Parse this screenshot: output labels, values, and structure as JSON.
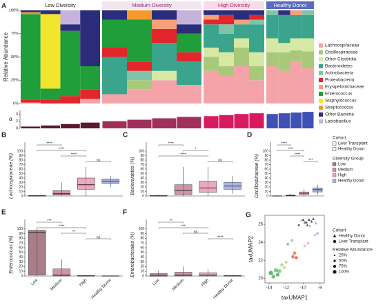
{
  "chart_data": [
    {
      "type": "stacked_bar",
      "panel": "A",
      "ylabel": "Relative Abundance",
      "ylim": [
        0,
        100
      ],
      "yticks": [
        {
          "value": 0,
          "label": "0%"
        },
        {
          "value": 25,
          "label": "25%"
        },
        {
          "value": 50,
          "label": "50%"
        },
        {
          "value": 75,
          "label": "75%"
        },
        {
          "value": 100,
          "label": "100%"
        }
      ],
      "series": [
        {
          "name": "Lachnospiraceae",
          "color": "#f4a3a8"
        },
        {
          "name": "Oscillospiraceae",
          "color": "#a9c97a"
        },
        {
          "name": "Other Clostridia",
          "color": "#d6e8a4"
        },
        {
          "name": "Bacteroidetes",
          "color": "#3aa58c"
        },
        {
          "name": "Actinobacteria",
          "color": "#7fc4a8"
        },
        {
          "name": "Proteobacteria",
          "color": "#e3262b"
        },
        {
          "name": "Erysipelotrichaceae",
          "color": "#f7a07a"
        },
        {
          "name": "Enterococcus",
          "color": "#1f9e3a"
        },
        {
          "name": "Staphylococcus",
          "color": "#f2e52e"
        },
        {
          "name": "Streptococcus",
          "color": "#f39a2a"
        },
        {
          "name": "Other Bacteria",
          "color": "#2b2d7a"
        },
        {
          "name": "Lactobacillus",
          "color": "#c6b3dd"
        }
      ],
      "alpha_label": "α",
      "alpha_ylim": [
        0,
        5
      ],
      "alpha_yticks": [
        0,
        2,
        4
      ],
      "facets": [
        {
          "title": "Low Diversity",
          "title_color": "#222222",
          "header_color": "#ffffff",
          "color": "#5b1a2c",
          "values": [
            [
              1,
              0,
              0,
              5
            ],
            [
              0,
              0,
              0,
              0
            ],
            [
              0,
              0,
              0,
              0
            ],
            [
              0,
              0,
              0,
              0
            ],
            [
              0,
              0,
              0,
              0
            ],
            [
              3,
              4,
              8,
              10
            ],
            [
              0,
              0,
              0,
              0
            ],
            [
              92,
              12,
              70,
              25
            ],
            [
              0,
              80,
              0,
              0
            ],
            [
              2,
              0,
              0,
              0
            ],
            [
              2,
              4,
              7,
              60
            ],
            [
              0,
              0,
              15,
              0
            ]
          ],
          "alpha": [
            0.5,
            0.8,
            1.2,
            1.6
          ]
        },
        {
          "title": "Medium Diversity",
          "title_color": "#8a2c7a",
          "header_color": "#f3e6f0",
          "color": "#a0305a",
          "values": [
            [
              10,
              15,
              25,
              20
            ],
            [
              0,
              10,
              0,
              0
            ],
            [
              0,
              0,
              10,
              0
            ],
            [
              40,
              0,
              30,
              25
            ],
            [
              0,
              10,
              0,
              0
            ],
            [
              10,
              10,
              15,
              10
            ],
            [
              0,
              0,
              10,
              0
            ],
            [
              30,
              45,
              0,
              20
            ],
            [
              0,
              0,
              0,
              0
            ],
            [
              0,
              10,
              0,
              0
            ],
            [
              10,
              0,
              10,
              10
            ],
            [
              0,
              0,
              0,
              15
            ]
          ],
          "alpha": [
            2,
            2.4,
            2.8,
            3.2
          ]
        },
        {
          "title": "High Diversity",
          "title_color": "#c2185b",
          "header_color": "#f7dbe8",
          "color": "#d81b60",
          "values": [
            [
              35,
              30,
              40,
              25
            ],
            [
              15,
              10,
              20,
              15
            ],
            [
              10,
              15,
              10,
              15
            ],
            [
              25,
              20,
              15,
              30
            ],
            [
              0,
              10,
              0,
              5
            ],
            [
              5,
              10,
              0,
              5
            ],
            [
              5,
              0,
              5,
              0
            ],
            [
              0,
              0,
              0,
              0
            ],
            [
              0,
              0,
              0,
              0
            ],
            [
              0,
              0,
              0,
              0
            ],
            [
              5,
              5,
              10,
              5
            ],
            [
              0,
              0,
              0,
              0
            ]
          ],
          "alpha": [
            3.4,
            3.7,
            4,
            4.2
          ]
        },
        {
          "title": "Healthy Donor",
          "title_color": "#ffffff",
          "header_color": "#5c6bc0",
          "color": "#3f51b5",
          "values": [
            [
              40,
              35,
              45,
              38
            ],
            [
              15,
              20,
              12,
              18
            ],
            [
              15,
              10,
              13,
              14
            ],
            [
              25,
              30,
              25,
              25
            ],
            [
              5,
              0,
              0,
              5
            ],
            [
              0,
              0,
              0,
              0
            ],
            [
              0,
              0,
              5,
              0
            ],
            [
              0,
              0,
              0,
              0
            ],
            [
              0,
              0,
              0,
              0
            ],
            [
              0,
              0,
              0,
              0
            ],
            [
              0,
              5,
              0,
              0
            ],
            [
              0,
              0,
              0,
              0
            ]
          ],
          "alpha": [
            4,
            4.2,
            4.4,
            4.6
          ]
        }
      ]
    },
    {
      "type": "box",
      "panel": "B",
      "ylabel": "Lachnospiraceae (%)",
      "categories": [
        "Low",
        "Medium",
        "High",
        "Healthy Donor"
      ],
      "category_labels": false,
      "colors": [
        "#7a3b4a",
        "#b8577e",
        "#e07aa0",
        "#7f8fd6"
      ],
      "ylim": [
        0,
        120
      ],
      "yticks": [
        0,
        10,
        20,
        30,
        40,
        50,
        60,
        70,
        80,
        90,
        100
      ],
      "boxes": [
        {
          "low": 0,
          "q1": 0,
          "median": 0,
          "q3": 1,
          "high": 3
        },
        {
          "low": 0,
          "q1": 2,
          "median": 5,
          "q3": 12,
          "high": 30
        },
        {
          "low": 0,
          "q1": 15,
          "median": 25,
          "q3": 40,
          "high": 65
        },
        {
          "low": 20,
          "q1": 28,
          "median": 33,
          "q3": 38,
          "high": 45
        }
      ],
      "brackets": [
        {
          "pair": [
            "Low",
            "Medium"
          ],
          "label": "****"
        },
        {
          "pair": [
            "Low",
            "High"
          ],
          "label": "****"
        },
        {
          "pair": [
            "Medium",
            "High"
          ],
          "label": "****"
        },
        {
          "pair": [
            "High",
            "Healthy Donor"
          ],
          "label": "ns"
        }
      ]
    },
    {
      "type": "box",
      "panel": "C",
      "ylabel": "Bacteroidetes (%)",
      "categories": [
        "Low",
        "Medium",
        "High",
        "Healthy Donor"
      ],
      "category_labels": false,
      "colors": [
        "#7a3b4a",
        "#b8577e",
        "#e07aa0",
        "#7f8fd6"
      ],
      "ylim": [
        0,
        120
      ],
      "yticks": [
        0,
        10,
        20,
        30,
        40,
        50,
        60,
        70,
        80,
        90,
        100
      ],
      "boxes": [
        {
          "low": 0,
          "q1": 0,
          "median": 0,
          "q3": 1,
          "high": 3
        },
        {
          "low": 0,
          "q1": 3,
          "median": 12,
          "q3": 25,
          "high": 65
        },
        {
          "low": 0,
          "q1": 8,
          "median": 18,
          "q3": 33,
          "high": 65
        },
        {
          "low": 5,
          "q1": 15,
          "median": 22,
          "q3": 30,
          "high": 45
        }
      ],
      "brackets": [
        {
          "pair": [
            "Low",
            "Medium"
          ],
          "label": "****"
        },
        {
          "pair": [
            "Medium",
            "High"
          ],
          "label": "*"
        },
        {
          "pair": [
            "Low",
            "High"
          ],
          "label": "****"
        },
        {
          "pair": [
            "High",
            "Healthy Donor"
          ],
          "label": "ns"
        }
      ]
    },
    {
      "type": "box",
      "panel": "D",
      "ylabel": "Oscillospiraceae (%)",
      "categories": [
        "Low",
        "Medium",
        "High",
        "Healthy Donor"
      ],
      "category_labels": false,
      "colors": [
        "#7a3b4a",
        "#b8577e",
        "#e07aa0",
        "#7f8fd6"
      ],
      "ylim": [
        0,
        120
      ],
      "yticks": [
        0,
        10,
        20,
        30,
        40,
        50,
        60,
        70,
        80,
        90,
        100
      ],
      "boxes": [
        {
          "low": 0,
          "q1": 0,
          "median": 0,
          "q3": 0.5,
          "high": 1
        },
        {
          "low": 0,
          "q1": 0,
          "median": 1,
          "q3": 2,
          "high": 5
        },
        {
          "low": 0,
          "q1": 3,
          "median": 6,
          "q3": 9,
          "high": 15
        },
        {
          "low": 3,
          "q1": 9,
          "median": 14,
          "q3": 18,
          "high": 25
        }
      ],
      "brackets": [
        {
          "pair": [
            "Low",
            "Medium"
          ],
          "label": "****"
        },
        {
          "pair": [
            "Low",
            "High"
          ],
          "label": "****"
        },
        {
          "pair": [
            "Medium",
            "High"
          ],
          "label": "****"
        },
        {
          "pair": [
            "High",
            "Healthy Donor"
          ],
          "label": "***"
        }
      ]
    },
    {
      "type": "box",
      "panel": "E",
      "ylabel": "Enterococcus (%)",
      "categories": [
        "Low",
        "Medium",
        "High",
        "Healthy Donor"
      ],
      "category_labels": true,
      "colors": [
        "#7a3b4a",
        "#b8577e",
        "#e07aa0",
        "#7f8fd6"
      ],
      "ylim": [
        0,
        120
      ],
      "yticks": [
        0,
        10,
        20,
        30,
        40,
        50,
        60,
        70,
        80,
        90,
        100
      ],
      "boxes": [
        {
          "low": 0,
          "q1": 2,
          "median": 92,
          "q3": 97,
          "high": 100
        },
        {
          "low": 0,
          "q1": 0,
          "median": 2,
          "q3": 15,
          "high": 35
        },
        {
          "low": 0,
          "q1": 0,
          "median": 0,
          "q3": 1,
          "high": 2
        },
        {
          "low": 0,
          "q1": 0,
          "median": 0,
          "q3": 0.5,
          "high": 1
        }
      ],
      "brackets": [
        {
          "pair": [
            "Low",
            "Medium"
          ],
          "label": "***"
        },
        {
          "pair": [
            "Low",
            "High"
          ],
          "label": "****"
        },
        {
          "pair": [
            "Medium",
            "High"
          ],
          "label": "**"
        },
        {
          "pair": [
            "High",
            "Healthy Donor"
          ],
          "label": "ns"
        }
      ]
    },
    {
      "type": "box",
      "panel": "F",
      "ylabel": "Enterobacterales (%)",
      "categories": [
        "Low",
        "Medium",
        "High",
        "Healthy Donor"
      ],
      "category_labels": true,
      "colors": [
        "#7a3b4a",
        "#b8577e",
        "#e07aa0",
        "#7f8fd6"
      ],
      "ylim": [
        0,
        120
      ],
      "yticks": [
        0,
        10,
        20,
        30,
        40,
        50,
        60,
        70,
        80,
        90,
        100
      ],
      "boxes": [
        {
          "low": 0,
          "q1": 0,
          "median": 0,
          "q3": 5,
          "high": 12
        },
        {
          "low": 0,
          "q1": 0,
          "median": 2,
          "q3": 8,
          "high": 20
        },
        {
          "low": 0,
          "q1": 0,
          "median": 2,
          "q3": 7,
          "high": 15
        },
        {
          "low": 0,
          "q1": 0,
          "median": 0,
          "q3": 1,
          "high": 2
        }
      ],
      "brackets": [
        {
          "pair": [
            "Low",
            "Medium"
          ],
          "label": "**"
        },
        {
          "pair": [
            "Low",
            "High"
          ],
          "label": "***"
        },
        {
          "pair": [
            "Medium",
            "High"
          ],
          "label": "ns"
        },
        {
          "pair": [
            "High",
            "Healthy Donor"
          ],
          "label": "****"
        }
      ]
    },
    {
      "type": "scatter",
      "panel": "G",
      "xlabel": "taxUMAP1",
      "ylabel": "taxUMAP2",
      "xlim": [
        -14.5,
        -7.5
      ],
      "xticks": [
        -14,
        -12,
        -10,
        -8
      ],
      "ylim": [
        19.5,
        27
      ],
      "yticks": [
        20,
        22,
        24,
        26
      ],
      "legend_title": "Cohort",
      "size_title": "Relative Abundance",
      "sizes_legend": [
        {
          "value": 25,
          "label": "25%"
        },
        {
          "value": 50,
          "label": "50%"
        },
        {
          "value": 75,
          "label": "75%"
        },
        {
          "value": 100,
          "label": "100%"
        }
      ],
      "series": [
        {
          "name": "Healthy Donor",
          "marker": "triangle",
          "x": [
            -10,
            -9.6,
            -9.3,
            -9,
            -8.8,
            -9.5
          ],
          "y": [
            26.5,
            26.2,
            26.5,
            26.3,
            26.6,
            25.9
          ],
          "sizes": [
            40,
            35,
            45,
            38,
            42,
            36
          ],
          "colors": [
            "#111111",
            "#111111",
            "#111111",
            "#111111",
            "#111111",
            "#111111"
          ]
        },
        {
          "name": "Liver Transplant",
          "marker": "circle",
          "x": [
            -13.8,
            -13.5,
            -13.2,
            -13.0,
            -12.8,
            -12.5,
            -12.2,
            -12.0,
            -11.2,
            -11,
            -10.8,
            -11.8,
            -11.3,
            -8.6,
            -8.3,
            -9.8,
            -9.4,
            -10.5,
            -9.8,
            -9.2,
            -10.2,
            -8.5
          ],
          "y": [
            20.6,
            20.2,
            20.9,
            20.4,
            20.8,
            21.5,
            21.2,
            21.8,
            22.4,
            22.8,
            22.3,
            23.8,
            24.2,
            24.8,
            25,
            23.6,
            23.9,
            25.9,
            26.2,
            25.8,
            26.4,
            26.1
          ],
          "sizes": [
            95,
            80,
            90,
            70,
            85,
            60,
            55,
            50,
            65,
            70,
            55,
            45,
            50,
            40,
            45,
            50,
            45,
            35,
            40,
            30,
            30,
            35
          ],
          "colors": [
            "#2e9e3e",
            "#3fae4a",
            "#56b85a",
            "#2e9e3e",
            "#6cc06a",
            "#a8c84a",
            "#c3d35a",
            "#b5cf54",
            "#e3552b",
            "#e8702e",
            "#d93a2b",
            "#7aa8a0",
            "#9ab8b0",
            "#c7a6dd",
            "#b994d4",
            "#f4b3a0",
            "#f0a0a8",
            "#3a3d8c",
            "#4a4f9c",
            "#9aa0a8",
            "#b0b0b0",
            "#8aa6c0"
          ]
        }
      ]
    }
  ],
  "legend": {
    "cohort_title": "Cohort",
    "cohort": [
      "Liver Transplant",
      "Healthy Donor"
    ],
    "group_title": "Diversity Group",
    "groups": [
      {
        "name": "Low",
        "color": "#7a3b4a"
      },
      {
        "name": "Medium",
        "color": "#b8577e"
      },
      {
        "name": "High",
        "color": "#e07aa0"
      },
      {
        "name": "Healthy Donor",
        "color": "#7f8fd6"
      }
    ]
  }
}
